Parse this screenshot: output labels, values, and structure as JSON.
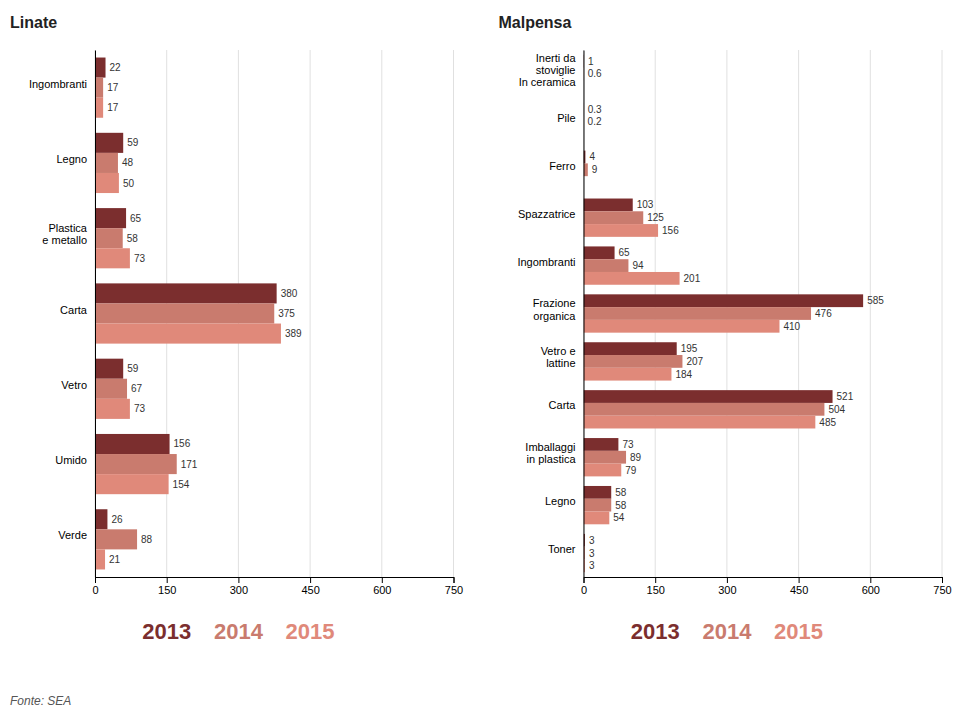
{
  "chart_data": [
    {
      "type": "bar",
      "orientation": "horizontal",
      "title": "Linate",
      "categories": [
        "Ingombranti",
        "Legno",
        "Plastica\ne metallo",
        "Carta",
        "Vetro",
        "Umido",
        "Verde"
      ],
      "series": [
        {
          "name": "2013",
          "color": "#7b2e2e",
          "values": [
            22,
            59,
            65,
            380,
            59,
            156,
            26
          ]
        },
        {
          "name": "2014",
          "color": "#c97b6e",
          "values": [
            17,
            48,
            58,
            375,
            67,
            171,
            88
          ]
        },
        {
          "name": "2015",
          "color": "#e0897a",
          "values": [
            17,
            50,
            73,
            389,
            73,
            154,
            21
          ]
        }
      ],
      "xlim": [
        0,
        750
      ],
      "xticks": [
        0,
        150,
        300,
        450,
        600,
        750
      ],
      "grid": true,
      "data_labels": true,
      "legend": "bottom",
      "annotations": [
        "Fonte: SEA"
      ]
    },
    {
      "type": "bar",
      "orientation": "horizontal",
      "title": "Malpensa",
      "categories": [
        "Inerti da\nstoviglie\nIn ceramica",
        "Pile",
        "Ferro",
        "Spazzatrice",
        "Ingombranti",
        "Frazione\norganica",
        "Vetro e\nlattine",
        "Carta",
        "Imballaggi\nin plastica",
        "Legno",
        "Toner"
      ],
      "series": [
        {
          "name": "2013",
          "color": "#7b2e2e",
          "values": [
            1,
            0.3,
            4,
            103,
            65,
            585,
            195,
            521,
            73,
            58,
            3
          ]
        },
        {
          "name": "2014",
          "color": "#c97b6e",
          "values": [
            0.6,
            0.2,
            9,
            125,
            94,
            476,
            207,
            504,
            89,
            58,
            3
          ]
        },
        {
          "name": "2015",
          "color": "#e0897a",
          "values": [
            0,
            0,
            0,
            156,
            201,
            410,
            184,
            485,
            79,
            54,
            3
          ]
        }
      ],
      "xlim": [
        0,
        750
      ],
      "xticks": [
        0,
        150,
        300,
        450,
        600,
        750
      ],
      "grid": true,
      "data_labels": true,
      "legend": "bottom"
    }
  ]
}
